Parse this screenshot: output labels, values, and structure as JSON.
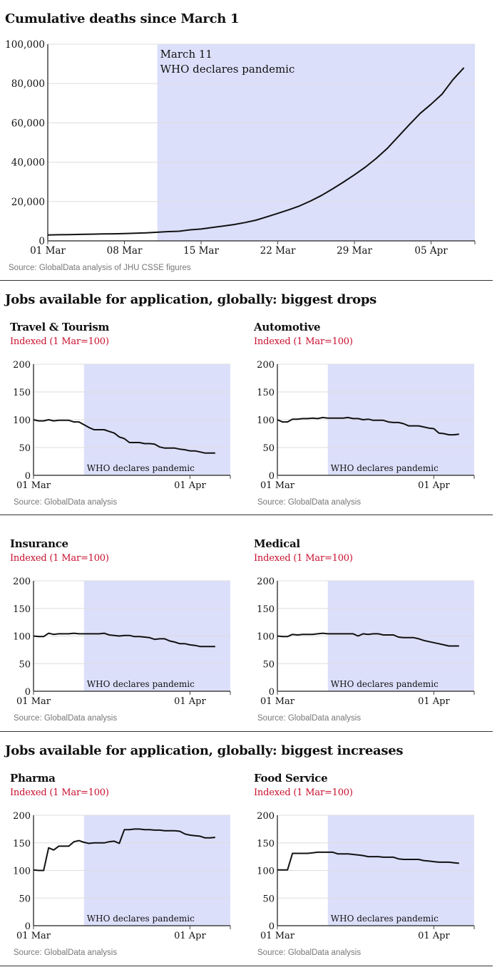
{
  "main_title": "Cumulative deaths since March 1",
  "section_drops": "Jobs available for application, globally: biggest drops",
  "section_increases": "Jobs available for application, globally: biggest increases",
  "colors": {
    "shade": "#dcdffa",
    "line": "#111111",
    "subtitle": "#c8102e",
    "grid": "#dddddd"
  },
  "chart_data": [
    {
      "id": "deaths",
      "type": "line",
      "title": "Cumulative deaths since March 1",
      "annotation_line1": "March 11",
      "annotation_line2": "WHO declares pandemic",
      "source": "Source: GlobalData analysis of JHU CSSE figures",
      "x_day_range": [
        0,
        39
      ],
      "shade_start_day": 10,
      "ylim": [
        0,
        100000
      ],
      "yticks": [
        0,
        20000,
        40000,
        60000,
        80000,
        100000
      ],
      "ytick_labels": [
        "0",
        "20,000",
        "40,000",
        "60,000",
        "80,000",
        "100,000"
      ],
      "xticks": [
        0,
        7,
        14,
        21,
        28,
        35
      ],
      "xtick_labels": [
        "01 Mar",
        "08 Mar",
        "15 Mar",
        "22 Mar",
        "29 Mar",
        "05 Apr"
      ],
      "values": [
        3000,
        3100,
        3200,
        3300,
        3400,
        3500,
        3600,
        3700,
        3900,
        4100,
        4400,
        4700,
        4900,
        5600,
        6000,
        6800,
        7500,
        8300,
        9300,
        10500,
        12200,
        14000,
        15800,
        17800,
        20300,
        23100,
        26400,
        29900,
        33600,
        37500,
        42000,
        47000,
        53000,
        59000,
        64800,
        69500,
        74600,
        82000,
        88000
      ]
    },
    {
      "id": "travel",
      "type": "line",
      "title": "Travel & Tourism",
      "subtitle": "Indexed (1 Mar=100)",
      "annotation": "WHO declares pandemic",
      "source": "Source: GlobalData analysis",
      "x_day_range": [
        0,
        39
      ],
      "shade_start_day": 10,
      "ylim": [
        0,
        200
      ],
      "yticks": [
        0,
        50,
        100,
        150,
        200
      ],
      "ytick_labels": [
        "0",
        "50",
        "100",
        "150",
        "200"
      ],
      "xticks": [
        0,
        31
      ],
      "xtick_labels": [
        "01 Mar",
        "01 Apr"
      ],
      "values": [
        100,
        98,
        98,
        100,
        98,
        99,
        99,
        99,
        96,
        96,
        91,
        86,
        82,
        82,
        82,
        79,
        76,
        69,
        66,
        59,
        59,
        59,
        57,
        57,
        56,
        51,
        49,
        49,
        49,
        47,
        46,
        44,
        44,
        42,
        40,
        40,
        40
      ]
    },
    {
      "id": "automotive",
      "type": "line",
      "title": "Automotive",
      "subtitle": "Indexed (1 Mar=100)",
      "annotation": "WHO declares pandemic",
      "source": "Source: GlobalData analysis",
      "x_day_range": [
        0,
        39
      ],
      "shade_start_day": 10,
      "ylim": [
        0,
        200
      ],
      "yticks": [
        0,
        50,
        100,
        150,
        200
      ],
      "ytick_labels": [
        "0",
        "50",
        "100",
        "150",
        "200"
      ],
      "xticks": [
        0,
        31
      ],
      "xtick_labels": [
        "01 Mar",
        "01 Apr"
      ],
      "values": [
        100,
        96,
        96,
        101,
        101,
        102,
        102,
        103,
        102,
        104,
        103,
        103,
        103,
        103,
        104,
        102,
        102,
        100,
        101,
        99,
        99,
        99,
        96,
        95,
        95,
        93,
        89,
        89,
        89,
        87,
        85,
        84,
        76,
        75,
        73,
        73,
        74
      ]
    },
    {
      "id": "insurance",
      "type": "line",
      "title": "Insurance",
      "subtitle": "Indexed (1 Mar=100)",
      "annotation": "WHO declares pandemic",
      "source": "Source: GlobalData analysis",
      "x_day_range": [
        0,
        39
      ],
      "shade_start_day": 10,
      "ylim": [
        0,
        200
      ],
      "yticks": [
        0,
        50,
        100,
        150,
        200
      ],
      "ytick_labels": [
        "0",
        "50",
        "100",
        "150",
        "200"
      ],
      "xticks": [
        0,
        31
      ],
      "xtick_labels": [
        "01 Mar",
        "01 Apr"
      ],
      "values": [
        100,
        99,
        99,
        105,
        103,
        104,
        104,
        104,
        105,
        104,
        104,
        104,
        104,
        104,
        105,
        102,
        101,
        100,
        101,
        101,
        99,
        99,
        98,
        97,
        94,
        95,
        95,
        91,
        89,
        86,
        86,
        84,
        83,
        81,
        81,
        81,
        81
      ]
    },
    {
      "id": "medical",
      "type": "line",
      "title": "Medical",
      "subtitle": "Indexed (1 Mar=100)",
      "annotation": "WHO declares pandemic",
      "source": "Source: GlobalData analysis",
      "x_day_range": [
        0,
        39
      ],
      "shade_start_day": 10,
      "ylim": [
        0,
        200
      ],
      "yticks": [
        0,
        50,
        100,
        150,
        200
      ],
      "ytick_labels": [
        "0",
        "50",
        "100",
        "150",
        "200"
      ],
      "xticks": [
        0,
        31
      ],
      "xtick_labels": [
        "01 Mar",
        "01 Apr"
      ],
      "values": [
        100,
        99,
        99,
        103,
        102,
        103,
        103,
        103,
        104,
        105,
        104,
        104,
        104,
        104,
        104,
        104,
        100,
        104,
        103,
        104,
        104,
        102,
        102,
        102,
        98,
        97,
        97,
        97,
        95,
        92,
        90,
        88,
        86,
        84,
        82,
        82,
        82
      ]
    },
    {
      "id": "pharma",
      "type": "line",
      "title": "Pharma",
      "subtitle": "Indexed (1 Mar=100)",
      "annotation": "WHO declares pandemic",
      "source": "Source: GlobalData analysis",
      "x_day_range": [
        0,
        39
      ],
      "shade_start_day": 10,
      "ylim": [
        0,
        200
      ],
      "yticks": [
        0,
        50,
        100,
        150,
        200
      ],
      "ytick_labels": [
        "0",
        "50",
        "100",
        "150",
        "200"
      ],
      "xticks": [
        0,
        31
      ],
      "xtick_labels": [
        "01 Mar",
        "01 Apr"
      ],
      "values": [
        101,
        100,
        100,
        141,
        137,
        144,
        144,
        144,
        152,
        154,
        151,
        149,
        150,
        150,
        150,
        152,
        153,
        149,
        174,
        174,
        175,
        175,
        174,
        174,
        173,
        173,
        172,
        172,
        172,
        171,
        166,
        164,
        163,
        162,
        159,
        159,
        160
      ]
    },
    {
      "id": "food",
      "type": "line",
      "title": "Food Service",
      "subtitle": "Indexed (1 Mar=100)",
      "annotation": "WHO declares pandemic",
      "source": "Source: GlobalData analysis",
      "x_day_range": [
        0,
        39
      ],
      "shade_start_day": 10,
      "ylim": [
        0,
        200
      ],
      "yticks": [
        0,
        50,
        100,
        150,
        200
      ],
      "ytick_labels": [
        "0",
        "50",
        "100",
        "150",
        "200"
      ],
      "xticks": [
        0,
        31
      ],
      "xtick_labels": [
        "01 Mar",
        "01 Apr"
      ],
      "values": [
        101,
        101,
        101,
        131,
        131,
        131,
        131,
        132,
        133,
        133,
        133,
        133,
        130,
        130,
        130,
        129,
        128,
        127,
        125,
        125,
        125,
        124,
        124,
        124,
        121,
        120,
        120,
        120,
        120,
        118,
        117,
        116,
        115,
        115,
        115,
        114,
        113
      ]
    }
  ]
}
